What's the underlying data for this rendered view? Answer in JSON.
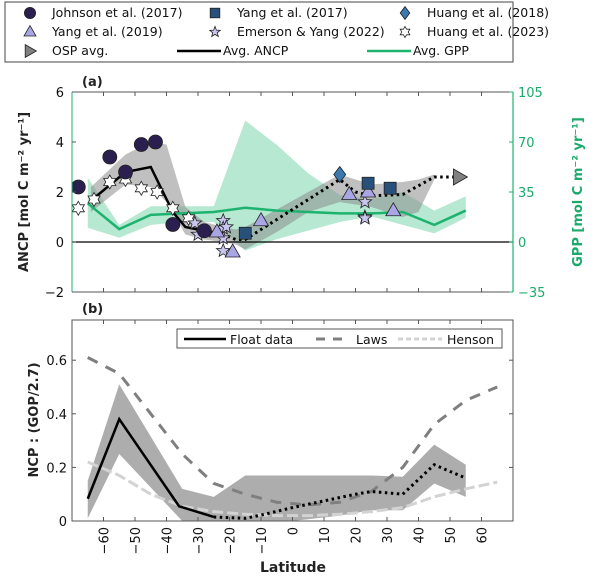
{
  "legend_top": [
    {
      "key": "johnson2017",
      "label": "Johnson et al. (2017)",
      "marker": "circle",
      "fill": "#2a1f4f"
    },
    {
      "key": "yang2017",
      "label": "Yang et al. (2017)",
      "marker": "square",
      "fill": "#27507a"
    },
    {
      "key": "huang2018",
      "label": "Huang et al. (2018)",
      "marker": "diamond",
      "fill": "#3a78b0"
    },
    {
      "key": "yang2019",
      "label": "Yang et al. (2019)",
      "marker": "triangle-up",
      "fill": "#a9a6e6"
    },
    {
      "key": "emerson2022",
      "label": "Emerson & Yang (2022)",
      "marker": "star5",
      "fill": "#c9c6ef"
    },
    {
      "key": "huang2023",
      "label": "Huang et al. (2023)",
      "marker": "star6",
      "fill": "#ffffff"
    },
    {
      "key": "osp",
      "label": "OSP avg.",
      "marker": "triangle-right",
      "fill": "#808080"
    },
    {
      "key": "ancp",
      "label": "Avg. ANCP",
      "marker": "line",
      "fill": "#000000"
    },
    {
      "key": "gpp",
      "label": "Avg. GPP",
      "marker": "line",
      "fill": "#1db36f"
    }
  ],
  "chart_data": [
    {
      "panel_label": "(a)",
      "type": "line",
      "xlim": [
        -70,
        70
      ],
      "ylim": [
        -2,
        6
      ],
      "y2lim": [
        -35,
        105
      ],
      "yticks": [
        "-2",
        "0",
        "2",
        "4",
        "6"
      ],
      "y2ticks": [
        "-35",
        "0",
        "35",
        "70",
        "105"
      ],
      "ylabel": "ANCP [mol C m⁻² yr⁻¹]",
      "y2label": "GPP [mol C m⁻² yr⁻¹]",
      "colors": {
        "ancp": "#000000",
        "gpp": "#1db36f",
        "gpp_band": "#9fe0c3",
        "ancp_band": "#8c8c8c",
        "axis_right": "#1db36f"
      },
      "ancp_solid": {
        "x": [
          -64,
          -53,
          -45,
          -38,
          -34,
          -28
        ],
        "y": [
          1.65,
          2.8,
          3.0,
          1.2,
          0.6,
          0.45
        ]
      },
      "ancp_dotted": {
        "x": [
          -28,
          -22,
          -18,
          -15,
          -5,
          5,
          15,
          20,
          25,
          35,
          45,
          50,
          55
        ],
        "y": [
          0.45,
          0.3,
          0.1,
          0.1,
          0.9,
          1.7,
          2.5,
          2.0,
          1.85,
          1.9,
          2.6,
          2.6,
          2.6
        ]
      },
      "ancp_band": {
        "x": [
          -64,
          -53,
          -45,
          -40,
          -34,
          -28,
          -22,
          -18,
          -15,
          -5,
          5,
          15,
          25,
          35,
          40,
          45
        ],
        "upper": [
          2.2,
          3.5,
          4.0,
          3.9,
          1.4,
          0.8,
          0.6,
          0.5,
          0.6,
          1.3,
          2.0,
          2.7,
          2.3,
          2.4,
          2.5,
          2.7
        ],
        "lower": [
          1.2,
          2.3,
          2.2,
          1.6,
          0.3,
          0.1,
          0.0,
          -0.1,
          -0.3,
          0.4,
          1.2,
          1.6,
          1.4,
          1.0,
          1.2,
          2.5
        ]
      },
      "gpp_line": {
        "x": [
          -65,
          -55,
          -45,
          -35,
          -25,
          -15,
          -5,
          5,
          15,
          25,
          35,
          45,
          55
        ],
        "y": [
          27,
          9,
          19,
          20,
          21,
          24,
          22,
          21,
          20,
          20,
          21,
          12,
          22
        ]
      },
      "gpp_band": {
        "x": [
          -65,
          -55,
          -45,
          -35,
          -25,
          -15,
          -5,
          5,
          15,
          25,
          35,
          45,
          55
        ],
        "upper": [
          45,
          12,
          25,
          25,
          25,
          85,
          68,
          48,
          33,
          30,
          35,
          22,
          32
        ],
        "lower": [
          10,
          3,
          12,
          14,
          14,
          -6,
          2,
          8,
          14,
          18,
          12,
          6,
          17
        ]
      },
      "johnson2017": {
        "x": [
          -68,
          -58,
          -53,
          -48,
          -43.5,
          -38,
          -28
        ],
        "y": [
          2.2,
          3.4,
          2.8,
          3.9,
          4.0,
          0.7,
          0.45
        ]
      },
      "yang2017": {
        "x": [
          -15,
          31,
          24
        ],
        "y": [
          0.35,
          2.15,
          2.35
        ]
      },
      "huang2018": {
        "x": [
          15
        ],
        "y": [
          2.7
        ]
      },
      "yang2019": {
        "x": [
          -24,
          -19,
          -10,
          18,
          24,
          32
        ],
        "y": [
          0.4,
          -0.4,
          0.85,
          1.9,
          2.0,
          1.25
        ]
      },
      "emerson2022": {
        "x": [
          -31,
          -30,
          -22,
          -22,
          -22,
          -22,
          -21,
          23,
          23,
          23
        ],
        "y": [
          0.75,
          0.3,
          0.85,
          0.55,
          0.15,
          -0.35,
          0.6,
          1.6,
          1.0,
          0.95
        ]
      },
      "huang2023": {
        "x": [
          -68,
          -63,
          -58,
          -53,
          -48,
          -43,
          -38,
          -33
        ],
        "y": [
          1.35,
          1.7,
          2.4,
          2.5,
          2.15,
          2.0,
          1.35,
          0.95
        ]
      },
      "osp": {
        "x": [
          53
        ],
        "y": [
          2.6
        ]
      }
    },
    {
      "panel_label": "(b)",
      "type": "line",
      "xlabel": "Latitude",
      "ylabel": "NCP : (GOP/2.7)",
      "xlim": [
        -70,
        70
      ],
      "ylim": [
        0,
        0.75
      ],
      "xticks": [
        "-60",
        "-50",
        "-40",
        "-30",
        "-20",
        "-10",
        "0",
        "10",
        "20",
        "30",
        "40",
        "50",
        "60"
      ],
      "yticks": [
        "0",
        "0.2",
        "0.4",
        "0.6"
      ],
      "legend": [
        {
          "label": "Float data",
          "style": "solid",
          "color": "#000000"
        },
        {
          "label": "Laws",
          "style": "dashed",
          "color": "#7f7f7f"
        },
        {
          "label": "Henson",
          "style": "dashed",
          "color": "#d3d3d3"
        }
      ],
      "float_solid": {
        "x": [
          -65,
          -55,
          -36,
          -25
        ],
        "y": [
          0.083,
          0.38,
          0.055,
          0.015
        ]
      },
      "float_dotted": {
        "x": [
          -25,
          -15,
          -10,
          0,
          10,
          20,
          25,
          35,
          45,
          55
        ],
        "y": [
          0.015,
          0.01,
          0.022,
          0.05,
          0.075,
          0.1,
          0.11,
          0.1,
          0.21,
          0.16
        ]
      },
      "float_band": {
        "x": [
          -65,
          -55,
          -35,
          -25,
          -15,
          0,
          15,
          25,
          35,
          45,
          55
        ],
        "upper": [
          0.15,
          0.51,
          0.12,
          0.09,
          0.17,
          0.17,
          0.17,
          0.17,
          0.165,
          0.285,
          0.21
        ],
        "lower": [
          0.01,
          0.25,
          0.0,
          0.0,
          0.0,
          0.0,
          0.02,
          0.04,
          0.04,
          0.14,
          0.09
        ]
      },
      "laws": {
        "x": [
          -65,
          -55,
          -45,
          -35,
          -25,
          -15,
          -5,
          5,
          15,
          25,
          35,
          45,
          55,
          65
        ],
        "y": [
          0.61,
          0.55,
          0.4,
          0.25,
          0.14,
          0.1,
          0.07,
          0.06,
          0.07,
          0.11,
          0.2,
          0.36,
          0.45,
          0.5
        ]
      },
      "henson": {
        "x": [
          -65,
          -55,
          -45,
          -35,
          -25,
          -15,
          -5,
          5,
          15,
          25,
          35,
          45,
          55,
          65
        ],
        "y": [
          0.22,
          0.17,
          0.1,
          0.055,
          0.035,
          0.025,
          0.02,
          0.02,
          0.025,
          0.035,
          0.05,
          0.09,
          0.12,
          0.145
        ]
      }
    }
  ]
}
